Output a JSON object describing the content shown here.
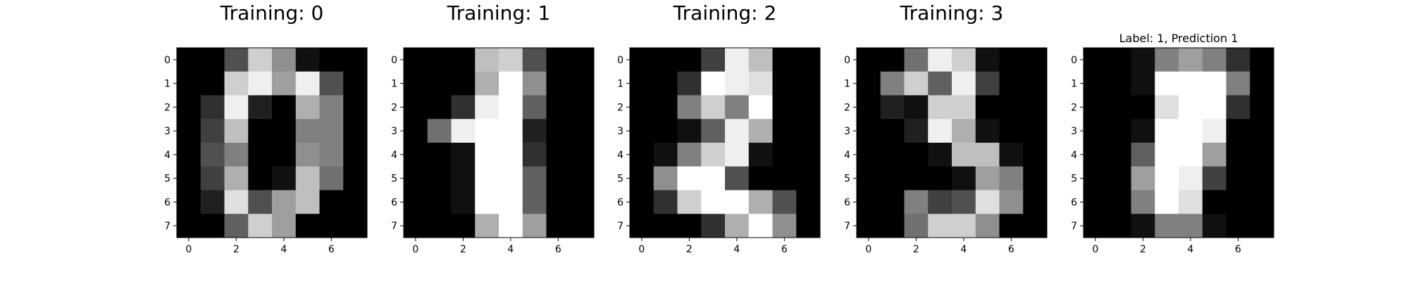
{
  "chart_data": [
    {
      "type": "heatmap",
      "title": "Training: 0",
      "x_ticks": [
        "0",
        "2",
        "4",
        "6"
      ],
      "y_ticks": [
        "0",
        "1",
        "2",
        "3",
        "4",
        "5",
        "6",
        "7"
      ],
      "vmin": 0,
      "vmax": 16,
      "colormap": "gray",
      "values": [
        [
          0,
          0,
          5,
          13,
          9,
          1,
          0,
          0
        ],
        [
          0,
          0,
          13,
          15,
          10,
          15,
          5,
          0
        ],
        [
          0,
          3,
          15,
          2,
          0,
          11,
          8,
          0
        ],
        [
          0,
          4,
          12,
          0,
          0,
          8,
          8,
          0
        ],
        [
          0,
          5,
          8,
          0,
          0,
          9,
          8,
          0
        ],
        [
          0,
          4,
          11,
          0,
          1,
          12,
          7,
          0
        ],
        [
          0,
          2,
          14,
          5,
          10,
          12,
          0,
          0
        ],
        [
          0,
          0,
          6,
          13,
          10,
          0,
          0,
          0
        ]
      ]
    },
    {
      "type": "heatmap",
      "title": "Training: 1",
      "x_ticks": [
        "0",
        "2",
        "4",
        "6"
      ],
      "y_ticks": [
        "0",
        "1",
        "2",
        "3",
        "4",
        "5",
        "6",
        "7"
      ],
      "vmin": 0,
      "vmax": 16,
      "colormap": "gray",
      "values": [
        [
          0,
          0,
          0,
          12,
          13,
          5,
          0,
          0
        ],
        [
          0,
          0,
          0,
          11,
          16,
          9,
          0,
          0
        ],
        [
          0,
          0,
          3,
          15,
          16,
          6,
          0,
          0
        ],
        [
          0,
          7,
          15,
          16,
          16,
          2,
          0,
          0
        ],
        [
          0,
          0,
          1,
          16,
          16,
          3,
          0,
          0
        ],
        [
          0,
          0,
          1,
          16,
          16,
          6,
          0,
          0
        ],
        [
          0,
          0,
          1,
          16,
          16,
          6,
          0,
          0
        ],
        [
          0,
          0,
          0,
          11,
          16,
          10,
          0,
          0
        ]
      ]
    },
    {
      "type": "heatmap",
      "title": "Training: 2",
      "x_ticks": [
        "0",
        "2",
        "4",
        "6"
      ],
      "y_ticks": [
        "0",
        "1",
        "2",
        "3",
        "4",
        "5",
        "6",
        "7"
      ],
      "vmin": 0,
      "vmax": 16,
      "colormap": "gray",
      "values": [
        [
          0,
          0,
          0,
          4,
          15,
          12,
          0,
          0
        ],
        [
          0,
          0,
          3,
          16,
          15,
          14,
          0,
          0
        ],
        [
          0,
          0,
          8,
          13,
          8,
          16,
          0,
          0
        ],
        [
          0,
          0,
          1,
          6,
          15,
          11,
          0,
          0
        ],
        [
          0,
          1,
          8,
          13,
          15,
          1,
          0,
          0
        ],
        [
          0,
          9,
          16,
          16,
          5,
          0,
          0,
          0
        ],
        [
          0,
          3,
          13,
          16,
          16,
          11,
          5,
          0
        ],
        [
          0,
          0,
          0,
          3,
          11,
          16,
          9,
          0
        ]
      ]
    },
    {
      "type": "heatmap",
      "title": "Training: 3",
      "x_ticks": [
        "0",
        "2",
        "4",
        "6"
      ],
      "y_ticks": [
        "0",
        "1",
        "2",
        "3",
        "4",
        "5",
        "6",
        "7"
      ],
      "vmin": 0,
      "vmax": 16,
      "colormap": "gray",
      "values": [
        [
          0,
          0,
          7,
          15,
          13,
          1,
          0,
          0
        ],
        [
          0,
          8,
          13,
          6,
          15,
          4,
          0,
          0
        ],
        [
          0,
          2,
          1,
          13,
          13,
          0,
          0,
          0
        ],
        [
          0,
          0,
          2,
          15,
          11,
          1,
          0,
          0
        ],
        [
          0,
          0,
          0,
          1,
          12,
          12,
          1,
          0
        ],
        [
          0,
          0,
          0,
          0,
          1,
          10,
          8,
          0
        ],
        [
          0,
          0,
          8,
          4,
          5,
          14,
          9,
          0
        ],
        [
          0,
          0,
          7,
          13,
          13,
          9,
          0,
          0
        ]
      ]
    },
    {
      "type": "heatmap",
      "title": "Label: 1, Prediction 1",
      "x_ticks": [
        "0",
        "2",
        "4",
        "6"
      ],
      "y_ticks": [
        "0",
        "1",
        "2",
        "3",
        "4",
        "5",
        "6",
        "7"
      ],
      "vmin": 0,
      "vmax": 16,
      "colormap": "gray",
      "values": [
        [
          0,
          0,
          1,
          8,
          10,
          8,
          3,
          0
        ],
        [
          0,
          0,
          1,
          16,
          16,
          16,
          8,
          0
        ],
        [
          0,
          0,
          0,
          14,
          16,
          16,
          3,
          0
        ],
        [
          0,
          0,
          1,
          16,
          16,
          15,
          0,
          0
        ],
        [
          0,
          0,
          6,
          16,
          16,
          10,
          0,
          0
        ],
        [
          0,
          0,
          10,
          16,
          15,
          4,
          0,
          0
        ],
        [
          0,
          0,
          8,
          16,
          14,
          0,
          0,
          0
        ],
        [
          0,
          0,
          1,
          8,
          8,
          1,
          0,
          0
        ]
      ]
    }
  ]
}
